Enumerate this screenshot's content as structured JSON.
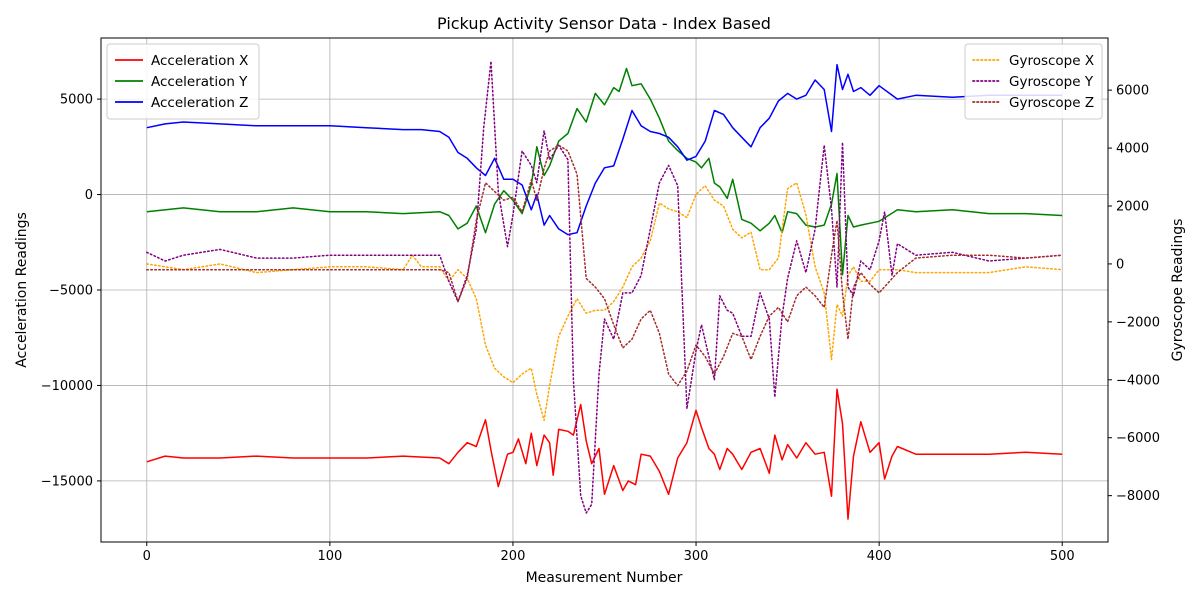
{
  "chart_data": {
    "type": "line",
    "title": "Pickup Activity Sensor Data - Index Based",
    "xlabel": "Measurement Number",
    "ylabel_left": "Acceleration Readings",
    "ylabel_right": "Gyroscope Readings",
    "xlim": [
      -25,
      525
    ],
    "ylim_left": [
      -18200,
      8200
    ],
    "ylim_right": [
      -9600,
      7800
    ],
    "x_ticks": [
      0,
      100,
      200,
      300,
      400,
      500
    ],
    "y_ticks_left": [
      5000,
      0,
      -5000,
      -10000,
      -15000
    ],
    "y_ticks_left_labels": [
      "5000",
      "0",
      "−5000",
      "−10000",
      "−15000"
    ],
    "y_ticks_right": [
      6000,
      4000,
      2000,
      0,
      -2000,
      -4000,
      -6000,
      -8000
    ],
    "y_ticks_right_labels": [
      "6000",
      "4000",
      "2000",
      "0",
      "−2000",
      "−4000",
      "−6000",
      "−8000"
    ],
    "grid": true,
    "legend_left_placement": "top-left",
    "legend_right_placement": "top-right",
    "series": [
      {
        "name": "Acceleration X",
        "axis": "left",
        "color": "#ff0000",
        "style": "solid",
        "x": [
          0,
          10,
          20,
          40,
          60,
          80,
          100,
          120,
          140,
          160,
          165,
          170,
          175,
          180,
          185,
          188,
          192,
          197,
          200,
          203,
          207,
          210,
          213,
          217,
          220,
          222,
          225,
          230,
          233,
          237,
          240,
          243,
          247,
          250,
          255,
          260,
          263,
          267,
          270,
          275,
          280,
          285,
          290,
          295,
          300,
          303,
          307,
          310,
          313,
          317,
          320,
          325,
          330,
          335,
          340,
          343,
          347,
          350,
          355,
          360,
          365,
          370,
          374,
          377,
          380,
          383,
          386,
          390,
          395,
          400,
          403,
          407,
          410,
          420,
          440,
          460,
          480,
          500
        ],
        "y": [
          -14000,
          -13700,
          -13800,
          -13800,
          -13700,
          -13800,
          -13800,
          -13800,
          -13700,
          -13800,
          -14100,
          -13500,
          -13000,
          -13200,
          -11800,
          -13400,
          -15300,
          -13600,
          -13500,
          -12800,
          -14100,
          -12500,
          -14200,
          -12600,
          -13000,
          -14700,
          -12300,
          -12400,
          -12600,
          -11000,
          -12900,
          -14100,
          -13300,
          -15700,
          -14200,
          -15500,
          -15000,
          -15200,
          -13600,
          -13700,
          -14500,
          -15700,
          -13800,
          -13000,
          -11300,
          -12200,
          -13300,
          -13600,
          -14400,
          -13300,
          -13600,
          -14400,
          -13500,
          -13300,
          -14600,
          -12600,
          -13900,
          -13100,
          -13800,
          -13000,
          -13600,
          -13500,
          -15800,
          -10200,
          -12000,
          -17000,
          -13700,
          -11900,
          -13500,
          -13000,
          -14900,
          -13700,
          -13200,
          -13600,
          -13600,
          -13600,
          -13500,
          -13600
        ]
      },
      {
        "name": "Acceleration Y",
        "axis": "left",
        "color": "#008000",
        "style": "solid",
        "x": [
          0,
          20,
          40,
          60,
          80,
          100,
          120,
          140,
          160,
          165,
          170,
          175,
          180,
          185,
          190,
          195,
          200,
          205,
          210,
          213,
          217,
          220,
          225,
          230,
          235,
          240,
          245,
          250,
          255,
          258,
          262,
          265,
          270,
          275,
          280,
          285,
          290,
          295,
          300,
          303,
          307,
          310,
          313,
          317,
          320,
          325,
          330,
          335,
          340,
          343,
          347,
          350,
          355,
          360,
          365,
          370,
          374,
          377,
          380,
          383,
          386,
          390,
          400,
          410,
          420,
          440,
          460,
          480,
          500
        ],
        "y": [
          -900,
          -700,
          -900,
          -900,
          -700,
          -900,
          -900,
          -1000,
          -900,
          -1100,
          -1800,
          -1500,
          -600,
          -2000,
          -500,
          200,
          -300,
          -1000,
          500,
          2500,
          1000,
          1500,
          2800,
          3200,
          4500,
          3800,
          5300,
          4700,
          5600,
          5400,
          6600,
          5700,
          5800,
          5000,
          4000,
          2800,
          2300,
          1900,
          1700,
          1400,
          1900,
          600,
          400,
          -200,
          800,
          -1300,
          -1500,
          -1900,
          -1500,
          -1100,
          -2000,
          -900,
          -1000,
          -1600,
          -1700,
          -1600,
          -500,
          1100,
          -4200,
          -1100,
          -1700,
          -1600,
          -1400,
          -800,
          -900,
          -800,
          -1000,
          -1000,
          -1100
        ]
      },
      {
        "name": "Acceleration Z",
        "axis": "left",
        "color": "#0000ff",
        "style": "solid",
        "x": [
          0,
          10,
          20,
          40,
          60,
          80,
          100,
          120,
          140,
          150,
          160,
          165,
          170,
          175,
          180,
          185,
          190,
          195,
          200,
          205,
          210,
          213,
          217,
          220,
          225,
          230,
          235,
          240,
          245,
          250,
          255,
          260,
          265,
          270,
          275,
          280,
          285,
          290,
          295,
          300,
          305,
          310,
          315,
          320,
          325,
          330,
          335,
          340,
          345,
          350,
          355,
          360,
          365,
          370,
          374,
          377,
          380,
          383,
          386,
          390,
          395,
          400,
          410,
          420,
          440,
          460,
          480,
          500
        ],
        "y": [
          3500,
          3700,
          3800,
          3700,
          3600,
          3600,
          3600,
          3500,
          3400,
          3400,
          3300,
          3000,
          2200,
          1900,
          1400,
          1000,
          1900,
          800,
          800,
          500,
          -800,
          0,
          -1600,
          -1100,
          -1800,
          -2100,
          -2000,
          -600,
          600,
          1400,
          1500,
          2900,
          4400,
          3600,
          3300,
          3200,
          3000,
          2500,
          1800,
          2000,
          2800,
          4400,
          4200,
          3500,
          3000,
          2500,
          3500,
          4000,
          4900,
          5300,
          5000,
          5200,
          6000,
          5500,
          3300,
          6800,
          5500,
          6300,
          5400,
          5600,
          5200,
          5700,
          5000,
          5200,
          5100,
          5200,
          5200,
          5200
        ]
      },
      {
        "name": "Gyroscope X",
        "axis": "right",
        "color": "#ffa500",
        "style": "dotted",
        "x": [
          0,
          20,
          40,
          60,
          80,
          100,
          120,
          140,
          145,
          150,
          160,
          165,
          170,
          175,
          180,
          185,
          190,
          195,
          200,
          205,
          210,
          213,
          217,
          220,
          225,
          230,
          235,
          240,
          245,
          250,
          255,
          260,
          265,
          270,
          275,
          280,
          285,
          290,
          295,
          300,
          305,
          310,
          315,
          320,
          325,
          330,
          335,
          340,
          345,
          350,
          355,
          360,
          365,
          370,
          374,
          377,
          380,
          383,
          386,
          390,
          395,
          400,
          410,
          420,
          440,
          460,
          480,
          500
        ],
        "y": [
          0,
          -200,
          0,
          -300,
          -200,
          -100,
          -100,
          -200,
          300,
          -100,
          -100,
          -600,
          -200,
          -500,
          -1200,
          -2800,
          -3600,
          -3900,
          -4100,
          -3800,
          -3600,
          -4500,
          -5400,
          -4200,
          -2500,
          -1800,
          -1200,
          -1700,
          -1600,
          -1600,
          -1300,
          -800,
          -100,
          200,
          800,
          2100,
          1900,
          1800,
          1600,
          2400,
          2700,
          2200,
          2000,
          1200,
          900,
          1100,
          -200,
          -200,
          200,
          2600,
          2800,
          1700,
          -100,
          -1000,
          -3300,
          -1400,
          -1800,
          -400,
          -100,
          -600,
          -600,
          -200,
          -200,
          -300,
          -300,
          -300,
          -100,
          -200
        ]
      },
      {
        "name": "Gyroscope Y",
        "axis": "right",
        "color": "#800080",
        "style": "dotted",
        "x": [
          0,
          10,
          20,
          40,
          60,
          80,
          100,
          120,
          140,
          150,
          160,
          165,
          170,
          175,
          180,
          184,
          188,
          192,
          197,
          200,
          205,
          210,
          213,
          217,
          220,
          225,
          230,
          233,
          237,
          240,
          243,
          247,
          250,
          255,
          260,
          265,
          270,
          275,
          280,
          285,
          290,
          295,
          300,
          303,
          307,
          310,
          313,
          317,
          320,
          325,
          330,
          335,
          340,
          343,
          347,
          350,
          355,
          360,
          365,
          370,
          374,
          377,
          380,
          383,
          386,
          390,
          395,
          400,
          403,
          407,
          410,
          420,
          440,
          460,
          480,
          500
        ],
        "y": [
          400,
          100,
          300,
          500,
          200,
          200,
          300,
          300,
          300,
          300,
          300,
          -600,
          -1300,
          -400,
          1200,
          4700,
          7000,
          2500,
          600,
          1700,
          3900,
          3400,
          2800,
          4600,
          3600,
          4100,
          3600,
          -4000,
          -8000,
          -8600,
          -8300,
          -3800,
          -1900,
          -2600,
          -1000,
          -1000,
          -400,
          1200,
          2800,
          3400,
          2700,
          -5000,
          -3000,
          -2100,
          -3200,
          -4000,
          -1100,
          -1600,
          -1700,
          -2500,
          -2500,
          -1000,
          -1900,
          -4600,
          -1800,
          -500,
          800,
          -300,
          1200,
          4100,
          1900,
          -800,
          4200,
          -800,
          -1100,
          100,
          -200,
          800,
          1800,
          -400,
          700,
          300,
          400,
          100,
          200,
          300
        ]
      },
      {
        "name": "Gyroscope Z",
        "axis": "right",
        "color": "#a52a2a",
        "style": "dotted",
        "x": [
          0,
          20,
          40,
          60,
          80,
          100,
          120,
          140,
          150,
          160,
          165,
          170,
          175,
          180,
          185,
          190,
          195,
          200,
          205,
          210,
          213,
          217,
          220,
          225,
          230,
          235,
          240,
          245,
          250,
          255,
          260,
          265,
          270,
          275,
          280,
          285,
          290,
          295,
          300,
          305,
          310,
          315,
          320,
          325,
          330,
          335,
          340,
          345,
          350,
          355,
          360,
          365,
          370,
          374,
          377,
          380,
          383,
          386,
          390,
          395,
          400,
          410,
          420,
          440,
          460,
          480,
          500
        ],
        "y": [
          -200,
          -200,
          -200,
          -200,
          -200,
          -200,
          -200,
          -200,
          -200,
          -200,
          -300,
          -1300,
          -500,
          1500,
          2800,
          2500,
          2200,
          2300,
          1800,
          2900,
          2200,
          3300,
          3900,
          4100,
          3900,
          3100,
          -500,
          -800,
          -1200,
          -2100,
          -2900,
          -2600,
          -1900,
          -1600,
          -2400,
          -3800,
          -4200,
          -3700,
          -2800,
          -3200,
          -3800,
          -3200,
          -2400,
          -2500,
          -3300,
          -2500,
          -1800,
          -1500,
          -2000,
          -1100,
          -800,
          -1100,
          -1500,
          300,
          1500,
          -1000,
          -2600,
          -800,
          -300,
          -700,
          -1000,
          -300,
          200,
          300,
          300,
          200,
          300
        ]
      }
    ]
  }
}
